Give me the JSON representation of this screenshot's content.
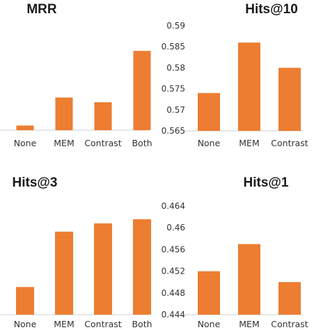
{
  "chart_data": [
    {
      "type": "bar",
      "title": "MRR",
      "categories": [
        "None",
        "MEM",
        "Contrast",
        "Both"
      ],
      "values": [
        0.3525,
        0.3675,
        0.365,
        0.3925
      ],
      "ylim": [
        0.35,
        0.4
      ],
      "yticks": [],
      "color": "#ED7D31"
    },
    {
      "type": "bar",
      "title": "Hits@10",
      "categories": [
        "None",
        "MEM",
        "Contrast"
      ],
      "values": [
        0.574,
        0.586,
        0.58
      ],
      "ylim": [
        0.565,
        0.59
      ],
      "yticks": [
        "0.565",
        "0.57",
        "0.575",
        "0.58",
        "0.585",
        "0.59"
      ],
      "color": "#ED7D31"
    },
    {
      "type": "bar",
      "title": "Hits@3",
      "categories": [
        "None",
        "MEM",
        "Contrast",
        "Both"
      ],
      "values": [
        0.4,
        0.42,
        0.423,
        0.4245
      ],
      "ylim": [
        0.39,
        0.43
      ],
      "yticks": [],
      "color": "#ED7D31"
    },
    {
      "type": "bar",
      "title": "Hits@1",
      "categories": [
        "None",
        "MEM",
        "Contrast"
      ],
      "values": [
        0.452,
        0.457,
        0.45
      ],
      "ylim": [
        0.444,
        0.464
      ],
      "yticks": [
        "0.444",
        "0.448",
        "0.452",
        "0.456",
        "0.46",
        "0.464"
      ],
      "color": "#ED7D31"
    }
  ]
}
